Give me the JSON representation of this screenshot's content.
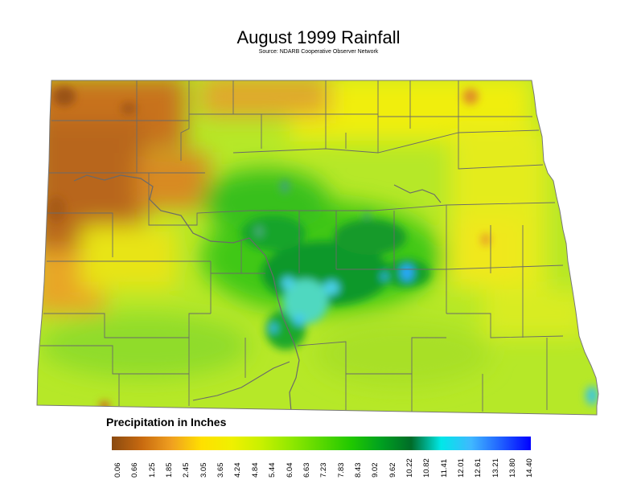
{
  "title": "August 1999 Rainfall",
  "subtitle": "Source: NDARB Cooperative Observer Network",
  "legend": {
    "title": "Precipitation in Inches",
    "ticks": [
      "0.06",
      "0.66",
      "1.25",
      "1.85",
      "2.45",
      "3.05",
      "3.65",
      "4.24",
      "4.84",
      "5.44",
      "6.04",
      "6.63",
      "7.23",
      "7.83",
      "8.43",
      "9.02",
      "9.62",
      "10.22",
      "10.82",
      "11.41",
      "12.01",
      "12.61",
      "13.21",
      "13.80",
      "14.40"
    ],
    "colors": [
      "#8a4a10",
      "#c86a10",
      "#f0a020",
      "#ffe000",
      "#f0f000",
      "#c8f000",
      "#90e800",
      "#58d800",
      "#20c800",
      "#00a020",
      "#006c28",
      "#00e8e8",
      "#40b8ff",
      "#2060ff",
      "#0000ff"
    ]
  },
  "palette": {
    "dry": "#c0661a",
    "orange": "#e8961e",
    "yellow": "#f0ee10",
    "lime": "#b6e828",
    "green": "#40c818",
    "darkgreen": "#0e9428",
    "cyan": "#40d8d0",
    "blue": "#2aa8ff",
    "county_line": "#6a6a6a"
  }
}
